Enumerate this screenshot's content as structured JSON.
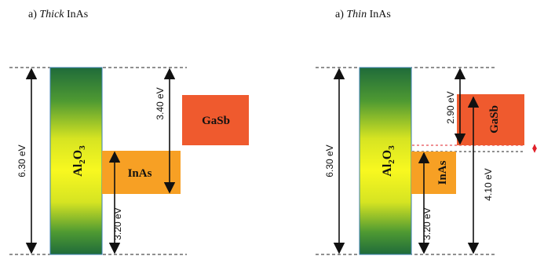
{
  "panels": {
    "left": {
      "heading_prefix": "a) ",
      "heading_italic": "Thick",
      "heading_suffix": " InAs",
      "oxide_main": "Al",
      "oxide_sub1": "2",
      "oxide_mid": "O",
      "oxide_sub2": "3",
      "inas": "InAs",
      "gasb": "GaSb",
      "total_gap": "6.30 eV",
      "gasb_offset": "3.40 eV",
      "inas_offset": "3.20 eV"
    },
    "right": {
      "heading_prefix": "a) ",
      "heading_italic": "Thin",
      "heading_suffix": " InAs",
      "oxide_main": "Al",
      "oxide_sub1": "2",
      "oxide_mid": "O",
      "oxide_sub2": "3",
      "inas": "InAs",
      "gasb": "GaSb",
      "total_gap": "6.30 eV",
      "gasb_offset": "2.90 eV",
      "inas_offset": "3.20 eV",
      "inas_to_bottom": "4.10 eV"
    }
  },
  "colors": {
    "inas_fill": "#f7a024",
    "gasb_fill": "#ef5a2e",
    "arrow": "#111111",
    "gap_marker": "#e0202a",
    "oxide_edge": "#3b7fb0",
    "oxide_dark": "#1f6b3a",
    "oxide_light": "#f8f820"
  }
}
